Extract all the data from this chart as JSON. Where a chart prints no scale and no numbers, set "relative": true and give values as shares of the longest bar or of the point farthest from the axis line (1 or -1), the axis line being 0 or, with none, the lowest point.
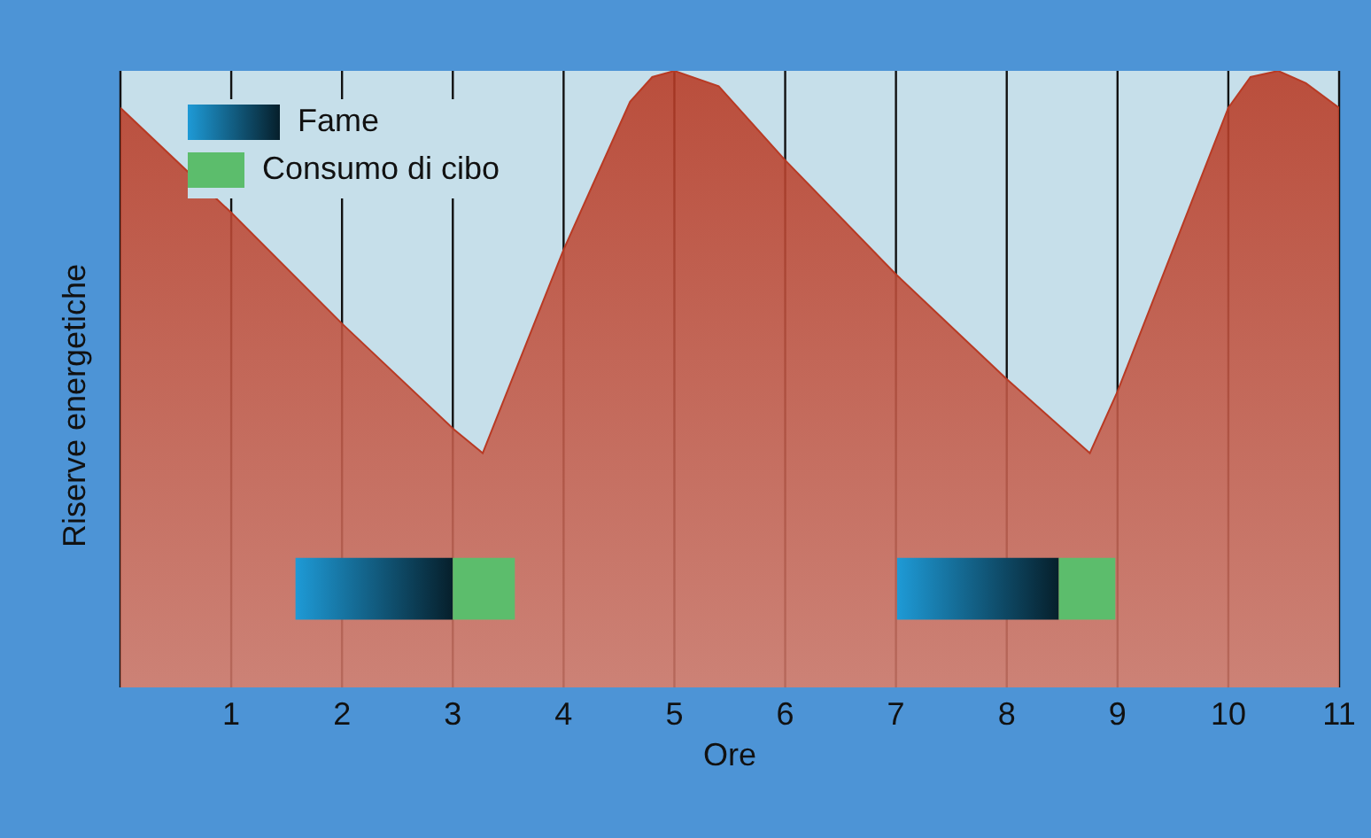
{
  "chart_data": {
    "type": "area",
    "relative": true,
    "xlabel": "Ore",
    "ylabel": "Riserve energetiche",
    "x": [
      0,
      1,
      2,
      3,
      3.27,
      4,
      4.6,
      4.8,
      5,
      5.4,
      6,
      7,
      8,
      8.75,
      9,
      10,
      10.2,
      10.45,
      10.7,
      11
    ],
    "series": [
      {
        "color": "#b83a24",
        "values": [
          0.94,
          0.77,
          0.59,
          0.42,
          0.38,
          0.71,
          0.95,
          0.99,
          1,
          0.975,
          0.855,
          0.67,
          0.5,
          0.38,
          0.48,
          0.94,
          0.99,
          1,
          0.98,
          0.94
        ]
      }
    ],
    "xlim": [
      0,
      11
    ],
    "xticks": [
      1,
      2,
      3,
      4,
      5,
      6,
      7,
      8,
      9,
      10,
      11
    ],
    "grid": "x",
    "legend": "top left",
    "bands": [
      {
        "axis": "x",
        "from": 1.58,
        "to": 3,
        "label": "Fame",
        "color": "#1e9ad6"
      },
      {
        "axis": "x",
        "from": 3,
        "to": 3.56,
        "label": "Consumo di cibo",
        "color": "#5cbd6c"
      },
      {
        "axis": "x",
        "from": 7.01,
        "to": 8.47,
        "color": "#1e9ad6"
      },
      {
        "axis": "x",
        "from": 8.47,
        "to": 8.98,
        "color": "#5cbd6c"
      }
    ]
  }
}
